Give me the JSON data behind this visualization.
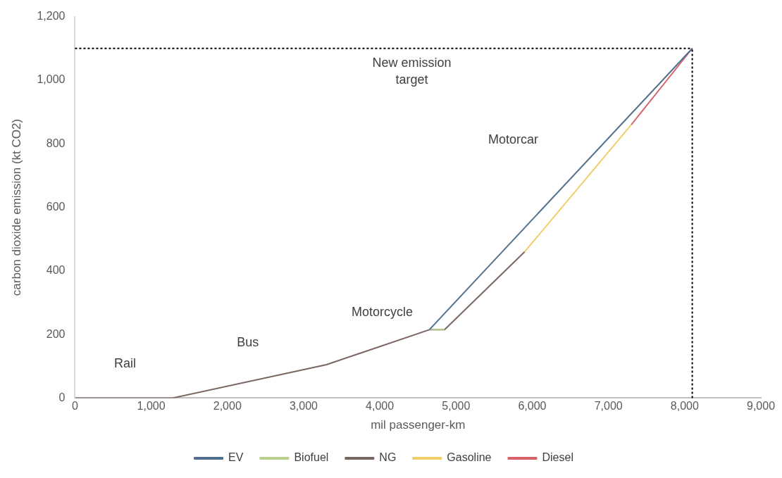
{
  "chart_data": {
    "type": "line",
    "xlabel": "mil passenger-km",
    "ylabel": "carbon dioxide emission (kt CO2)",
    "xlim": [
      0,
      9000
    ],
    "xticks": [
      {
        "value": 0,
        "label": "0"
      },
      {
        "value": 1000,
        "label": "1,000"
      },
      {
        "value": 2000,
        "label": "2,000"
      },
      {
        "value": 3000,
        "label": "3,000"
      },
      {
        "value": 4000,
        "label": "4,000"
      },
      {
        "value": 5000,
        "label": "5,000"
      },
      {
        "value": 6000,
        "label": "6,000"
      },
      {
        "value": 7000,
        "label": "7,000"
      },
      {
        "value": 8000,
        "label": "8,000"
      },
      {
        "value": 9000,
        "label": "9,000"
      }
    ],
    "ylim": [
      0,
      1200
    ],
    "yticks": [
      {
        "value": 0,
        "label": "0"
      },
      {
        "value": 200,
        "label": "200"
      },
      {
        "value": 400,
        "label": "400"
      },
      {
        "value": 600,
        "label": "600"
      },
      {
        "value": 800,
        "label": "800"
      },
      {
        "value": 1000,
        "label": "1,000"
      },
      {
        "value": 1200,
        "label": "1,200"
      }
    ],
    "series": [
      {
        "name": "EV",
        "color": "#4f6f8c",
        "x": [
          4650,
          8100
        ],
        "values": [
          215,
          1100
        ]
      },
      {
        "name": "Biofuel",
        "color": "#b9cf8c",
        "x": [
          4650,
          4850
        ],
        "values": [
          215,
          215
        ]
      },
      {
        "name": "NG",
        "color": "#7a6660",
        "x": [
          0,
          1280,
          3300,
          4650,
          4850,
          5900
        ],
        "values": [
          0,
          0,
          105,
          215,
          215,
          460
        ]
      },
      {
        "name": "Gasoline",
        "color": "#f0cf6a",
        "x": [
          5900,
          7300
        ],
        "values": [
          460,
          860
        ]
      },
      {
        "name": "Diesel",
        "color": "#d9626a",
        "x": [
          7300,
          8100
        ],
        "values": [
          860,
          1100
        ]
      }
    ],
    "ref_lines": [
      {
        "axis": "y",
        "value": 1100,
        "label": "New emission target",
        "line_style": "dotted",
        "color": "#000000"
      },
      {
        "axis": "x",
        "value": 8100,
        "line_style": "dotted",
        "color": "#000000"
      }
    ],
    "annotations": [
      "Rail",
      "Bus",
      "Motorcycle",
      "Motorcar"
    ],
    "grid": false,
    "legend": "bottom",
    "marker": "none",
    "line_style": "solid"
  }
}
